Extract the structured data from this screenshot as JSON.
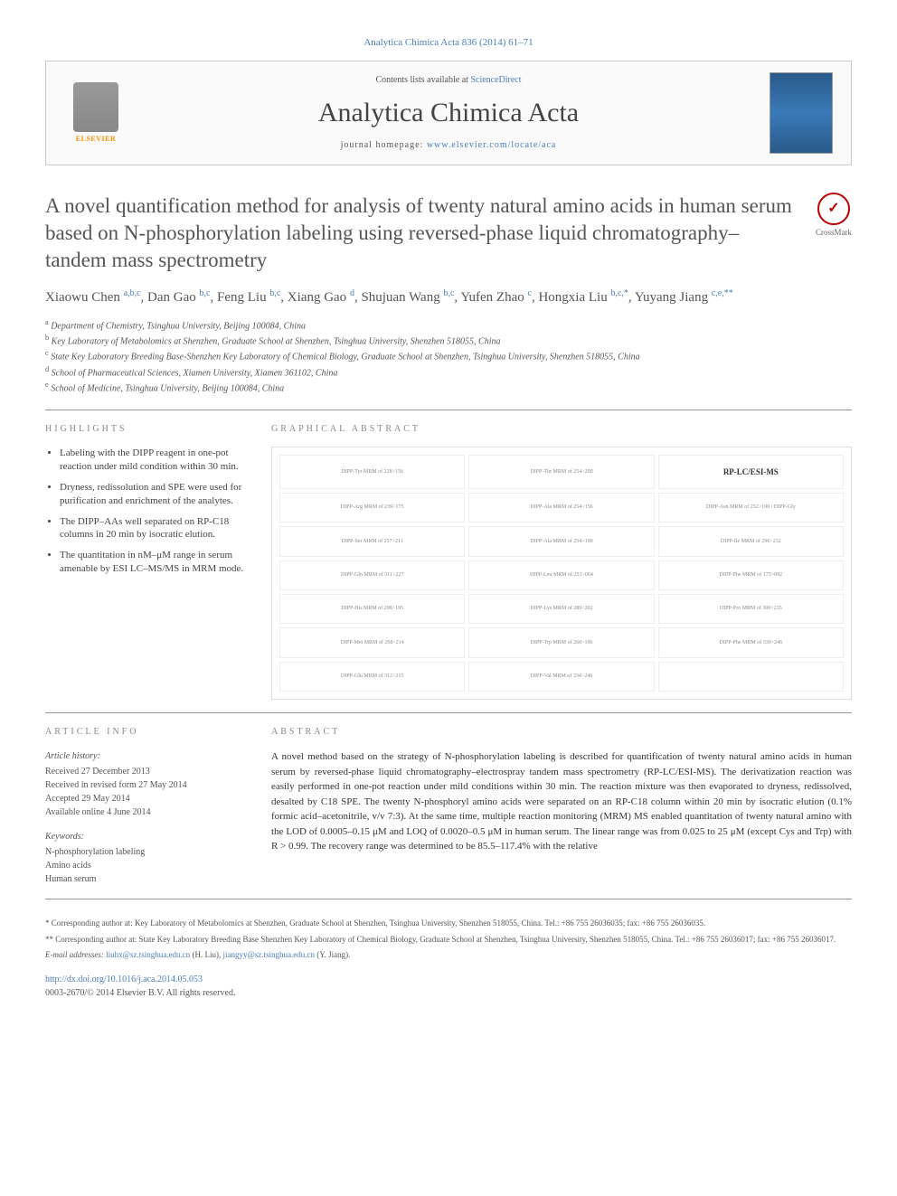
{
  "journal_ref": "Analytica Chimica Acta 836 (2014) 61–71",
  "header": {
    "contents_line_prefix": "Contents lists available at ",
    "contents_link": "ScienceDirect",
    "journal_name": "Analytica Chimica Acta",
    "homepage_prefix": "journal homepage: ",
    "homepage_url": "www.elsevier.com/locate/aca",
    "elsevier_label": "ELSEVIER"
  },
  "crossmark_label": "CrossMark",
  "title": "A novel quantification method for analysis of twenty natural amino acids in human serum based on N-phosphorylation labeling using reversed-phase liquid chromatography–tandem mass spectrometry",
  "authors_html": "Xiaowu Chen <sup>a,b,c</sup>, Dan Gao <sup>b,c</sup>, Feng Liu <sup>b,c</sup>, Xiang Gao <sup>d</sup>, Shujuan Wang <sup>b,c</sup>, Yufen Zhao <sup>c</sup>, Hongxia Liu <sup>b,c,*</sup>, Yuyang Jiang <sup>c,e,**</sup>",
  "affiliations": [
    {
      "sup": "a",
      "text": "Department of Chemistry, Tsinghua University, Beijing 100084, China"
    },
    {
      "sup": "b",
      "text": "Key Laboratory of Metabolomics at Shenzhen, Graduate School at Shenzhen, Tsinghua University, Shenzhen 518055, China"
    },
    {
      "sup": "c",
      "text": "State Key Laboratory Breeding Base-Shenzhen Key Laboratory of Chemical Biology, Graduate School at Shenzhen, Tsinghua University, Shenzhen 518055, China"
    },
    {
      "sup": "d",
      "text": "School of Pharmaceutical Sciences, Xiamen University, Xiamen 361102, China"
    },
    {
      "sup": "e",
      "text": "School of Medicine, Tsinghua University, Beijing 100084, China"
    }
  ],
  "highlights": {
    "heading": "HIGHLIGHTS",
    "items": [
      "Labeling with the DIPP reagent in one-pot reaction under mild condition within 30 min.",
      "Dryness, redissolution and SPE were used for purification and enrichment of the analytes.",
      "The DIPP–AAs well separated on RP-C18 columns in 20 min by isocratic elution.",
      "The quantitation in nM–μM range in serum amenable by ESI LC–MS/MS in MRM mode."
    ]
  },
  "graphical_abstract": {
    "heading": "GRAPHICAL ABSTRACT",
    "header_label": "RP-LC/ESI-MS",
    "cells": [
      "DIPP-Tyr MRM of 228>156",
      "DIPP-Thr MRM of 254>200",
      "",
      "DIPP-Arg MRM of 239>175",
      "DIPP-Ala MRM of 254>156",
      "DIPP-Asn MRM of 252>190 / DIPP-Gly",
      "DIPP-Ser MRM of 257>211",
      "DIPP-Ala MRM of 254>190",
      "DIPP-Ile MRM of 296>232",
      "DIPP-Gln MRM of 311>227",
      "DIPP-Leu MRM of 253>064",
      "DIPP-Phe MRM of 175>092",
      "DIPP-His MRM of 298>195",
      "DIPP-Lys MRM of 289>202",
      "DIPP-Pro MRM of 300>235",
      "DIPP-Met MRM of 268>214",
      "DIPP-Trp MRM of 260>196",
      "DIPP-Phe MRM of 330>246",
      "DIPP-Glu MRM of 312>215",
      "DIPP-Val MRM of 334>240",
      ""
    ]
  },
  "article_info": {
    "heading": "ARTICLE INFO",
    "history_head": "Article history:",
    "history": [
      "Received 27 December 2013",
      "Received in revised form 27 May 2014",
      "Accepted 29 May 2014",
      "Available online 4 June 2014"
    ],
    "keywords_head": "Keywords:",
    "keywords": [
      "N-phosphorylation labeling",
      "Amino acids",
      "Human serum"
    ]
  },
  "abstract": {
    "heading": "ABSTRACT",
    "text": "A novel method based on the strategy of N-phosphorylation labeling is described for quantification of twenty natural amino acids in human serum by reversed-phase liquid chromatography–electrospray tandem mass spectrometry (RP-LC/ESI-MS). The derivatization reaction was easily performed in one-pot reaction under mild conditions within 30 min. The reaction mixture was then evaporated to dryness, redissolved, desalted by C18 SPE. The twenty N-phosphoryl amino acids were separated on an RP-C18 column within 20 min by isocratic elution (0.1% formic acid–acetonitrile, v/v 7:3). At the same time, multiple reaction monitoring (MRM) MS enabled quantitation of twenty natural amino with the LOD of 0.0005–0.15 μM and LOQ of 0.0020–0.5 μM in human serum. The linear range was from 0.025 to 25 μM (except Cys and Trp) with R > 0.99. The recovery range was determined to be 85.5–117.4% with the relative"
  },
  "footer": {
    "corr1_prefix": "* Corresponding author at: ",
    "corr1": "Key Laboratory of Metabolomics at Shenzhen, Graduate School at Shenzhen, Tsinghua University, Shenzhen 518055, China. Tel.: +86 755 26036035; fax: +86 755 26036035.",
    "corr2_prefix": "** Corresponding author at: ",
    "corr2": "State Key Laboratory Breeding Base Shenzhen Key Laboratory of Chemical Biology, Graduate School at Shenzhen, Tsinghua University, Shenzhen 518055, China. Tel.: +86 755 26036017; fax: +86 755 26036017.",
    "email_prefix": "E-mail addresses: ",
    "email1": "liuhx@sz.tsinghua.edu.cn",
    "email1_name": " (H. Liu), ",
    "email2": "jiangyy@sz.tsinghua.edu.cn",
    "email2_name": " (Y. Jiang).",
    "doi": "http://dx.doi.org/10.1016/j.aca.2014.05.053",
    "copyright": "0003-2670/© 2014 Elsevier B.V. All rights reserved."
  },
  "colors": {
    "link": "#4a7cb8",
    "heading_gray": "#888888",
    "elsevier_orange": "#ff8c00",
    "crossmark_red": "#b00000"
  }
}
